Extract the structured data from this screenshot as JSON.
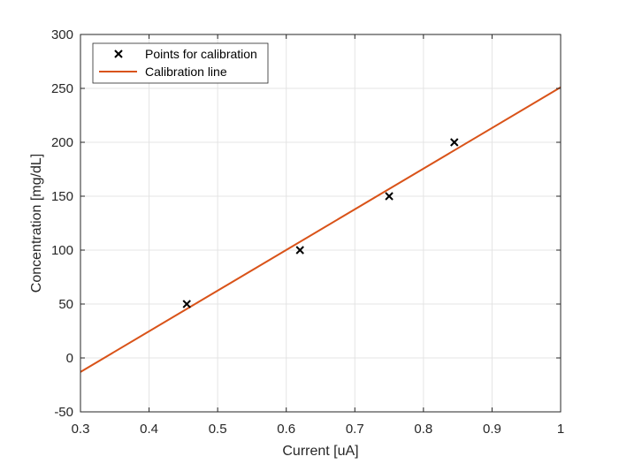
{
  "chart_data": {
    "type": "scatter",
    "xlabel": "Current [uA]",
    "ylabel": "Concentration [mg/dL]",
    "xlim": [
      0.3,
      1
    ],
    "ylim": [
      -50,
      300
    ],
    "xticks": [
      "0.3",
      "0.4",
      "0.5",
      "0.6",
      "0.7",
      "0.8",
      "0.9",
      "1"
    ],
    "yticks": [
      "-50",
      "0",
      "50",
      "100",
      "150",
      "200",
      "250",
      "300"
    ],
    "grid": true,
    "legend_position": "top-left",
    "series": [
      {
        "name": "Points for calibration",
        "kind": "scatter",
        "marker": "x",
        "color": "#000000",
        "x": [
          0.455,
          0.62,
          0.75,
          0.845
        ],
        "y": [
          50,
          100,
          150,
          200
        ]
      },
      {
        "name": "Calibration line",
        "kind": "line",
        "color": "#D95319",
        "x": [
          0.3,
          1.0
        ],
        "y": [
          -13,
          251
        ]
      }
    ]
  }
}
